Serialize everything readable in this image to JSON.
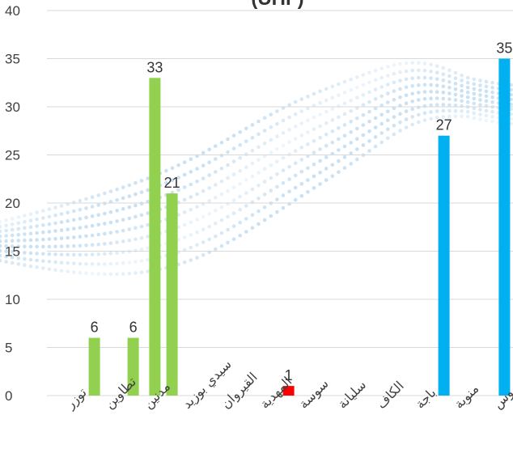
{
  "chart_data": {
    "type": "bar",
    "title": "(UHF)",
    "ylim": [
      0,
      40
    ],
    "yticks": [
      0,
      5,
      10,
      15,
      20,
      25,
      30,
      35,
      40
    ],
    "grid": true,
    "categories": [
      "توزر",
      "تطاوين",
      "مدنين",
      "سيدي بوزيد",
      "القيروان",
      "المهدية",
      "سوسة",
      "سليانة",
      "الكاف",
      "باجة",
      "منوبة",
      "بن عروس"
    ],
    "bars": [
      {
        "category": "تطاوين",
        "offset": -0.28,
        "value": 6,
        "color": "#92d050"
      },
      {
        "category": "مدنين",
        "offset": -0.28,
        "value": 6,
        "color": "#92d050"
      },
      {
        "category": "مدنين",
        "offset": 0.28,
        "value": 33,
        "color": "#92d050"
      },
      {
        "category": "سيدي بوزيد",
        "offset": -0.28,
        "value": 21,
        "color": "#92d050"
      },
      {
        "category": "سوسة",
        "offset": -0.28,
        "value": 1,
        "color": "#ff0000"
      },
      {
        "category": "منوبة",
        "offset": -0.28,
        "value": 27,
        "color": "#00b0f0"
      },
      {
        "category": "بن عروس",
        "offset": 0.28,
        "value": 35,
        "color": "#00b0f0"
      }
    ],
    "data_labels": [
      "6",
      "6",
      "33",
      "21",
      "1",
      "27",
      "35"
    ],
    "colors": {
      "green": "#92d050",
      "red": "#ff0000",
      "blue": "#00b0f0",
      "grid": "#d9d9d9",
      "decor": "#bcd9f0"
    }
  }
}
